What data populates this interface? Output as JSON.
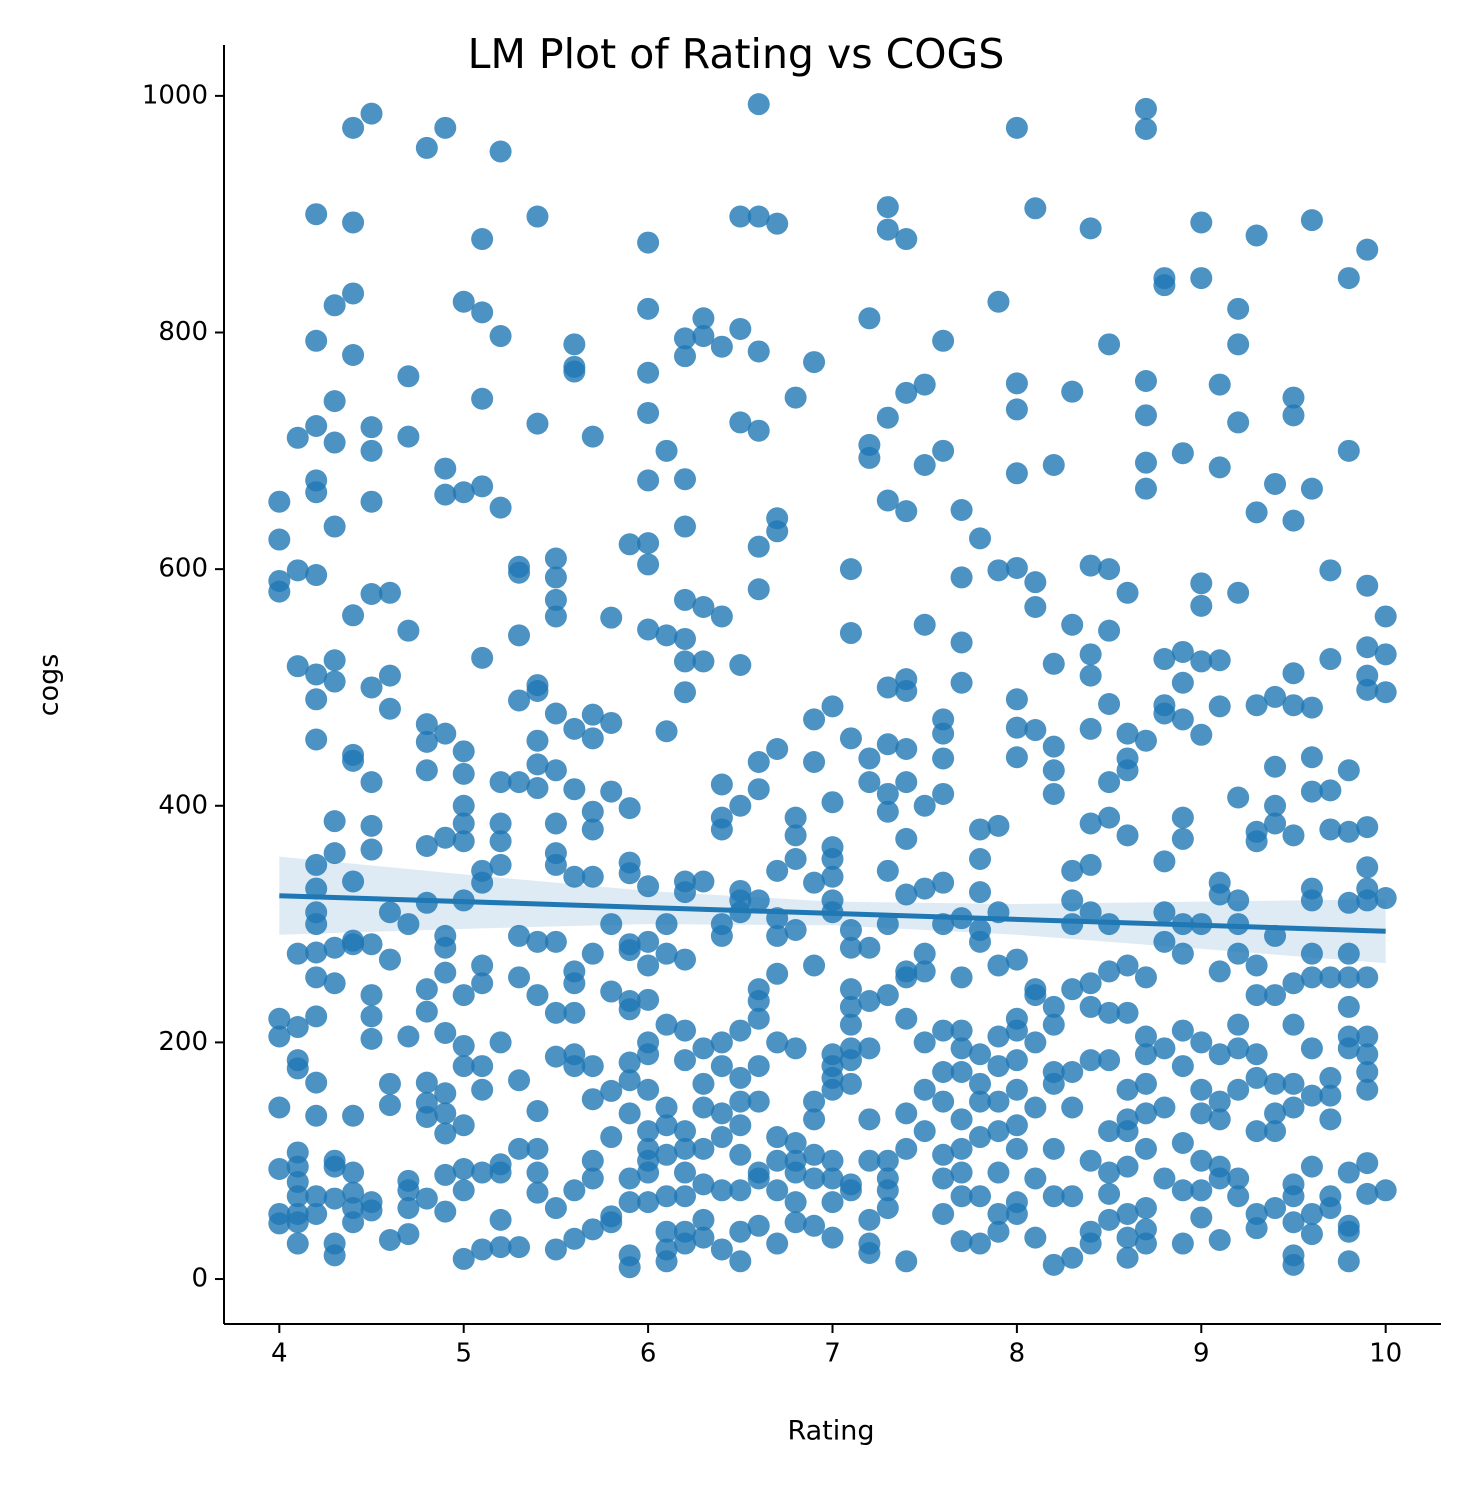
{
  "chart_data": {
    "type": "scatter",
    "title": "LM Plot of Rating vs COGS",
    "x_label": "Rating",
    "y_label": "cogs",
    "color": "#1f77b4",
    "xlim": [
      3.7,
      10.3
    ],
    "ylim": [
      -38,
      1043
    ],
    "xticks": [
      4,
      5,
      6,
      7,
      8,
      9,
      10
    ],
    "yticks": [
      0,
      200,
      400,
      600,
      800,
      1000
    ],
    "x": [
      4,
      4,
      4,
      4,
      4,
      4,
      4,
      4,
      4,
      4,
      4.1,
      4.1,
      4.1,
      4.1,
      4.1,
      4.1,
      4.1,
      4.1,
      4.1,
      4.1,
      4.1,
      4.1,
      4.1,
      4.1,
      4.2,
      4.2,
      4.2,
      4.2,
      4.2,
      4.2,
      4.2,
      4.2,
      4.2,
      4.2,
      4.2,
      4.2,
      4.2,
      4.2,
      4.2,
      4.2,
      4.2,
      4.2,
      4.2,
      4.2,
      4.3,
      4.3,
      4.3,
      4.3,
      4.3,
      4.3,
      4.3,
      4.3,
      4.3,
      4.3,
      4.3,
      4.3,
      4.3,
      4.3,
      4.3,
      4.4,
      4.4,
      4.4,
      4.4,
      4.4,
      4.4,
      4.4,
      4.4,
      4.4,
      4.4,
      4.4,
      4.4,
      4.4,
      4.4,
      4.4,
      4.5,
      4.5,
      4.5,
      4.5,
      4.5,
      4.5,
      4.5,
      4.5,
      4.5,
      4.5,
      4.5,
      4.5,
      4.5,
      4.5,
      4.5,
      4.6,
      4.6,
      4.6,
      4.6,
      4.6,
      4.6,
      4.6,
      4.6,
      4.7,
      4.7,
      4.7,
      4.7,
      4.7,
      4.7,
      4.7,
      4.7,
      4.7,
      4.8,
      4.8,
      4.8,
      4.8,
      4.8,
      4.8,
      4.8,
      4.8,
      4.8,
      4.8,
      4.8,
      4.8,
      4.9,
      4.9,
      4.9,
      4.9,
      4.9,
      4.9,
      4.9,
      4.9,
      4.9,
      4.9,
      4.9,
      4.9,
      4.9,
      4.9,
      5,
      5,
      5,
      5,
      5,
      5,
      5,
      5,
      5,
      5,
      5,
      5,
      5,
      5,
      5,
      5.1,
      5.1,
      5.1,
      5.1,
      5.1,
      5.1,
      5.1,
      5.1,
      5.1,
      5.1,
      5.1,
      5.1,
      5.1,
      5.2,
      5.2,
      5.2,
      5.2,
      5.2,
      5.2,
      5.2,
      5.2,
      5.2,
      5.2,
      5.2,
      5.2,
      5.3,
      5.3,
      5.3,
      5.3,
      5.3,
      5.3,
      5.3,
      5.3,
      5.3,
      5.3,
      5.4,
      5.4,
      5.4,
      5.4,
      5.4,
      5.4,
      5.4,
      5.4,
      5.4,
      5.4,
      5.4,
      5.4,
      5.4,
      5.5,
      5.5,
      5.5,
      5.5,
      5.5,
      5.5,
      5.5,
      5.5,
      5.5,
      5.5,
      5.5,
      5.5,
      5.5,
      5.5,
      5.6,
      5.6,
      5.6,
      5.6,
      5.6,
      5.6,
      5.6,
      5.6,
      5.6,
      5.6,
      5.6,
      5.6,
      5.6,
      5.7,
      5.7,
      5.7,
      5.7,
      5.7,
      5.7,
      5.7,
      5.7,
      5.7,
      5.7,
      5.7,
      5.7,
      5.8,
      5.8,
      5.8,
      5.8,
      5.8,
      5.8,
      5.8,
      5.8,
      5.8,
      5.9,
      5.9,
      5.9,
      5.9,
      5.9,
      5.9,
      5.9,
      5.9,
      5.9,
      5.9,
      5.9,
      5.9,
      5.9,
      5.9,
      5.9,
      6,
      6,
      6,
      6,
      6,
      6,
      6,
      6,
      6,
      6,
      6,
      6,
      6,
      6,
      6,
      6,
      6,
      6,
      6,
      6,
      6.1,
      6.1,
      6.1,
      6.1,
      6.1,
      6.1,
      6.1,
      6.1,
      6.1,
      6.1,
      6.1,
      6.1,
      6.1,
      6.2,
      6.2,
      6.2,
      6.2,
      6.2,
      6.2,
      6.2,
      6.2,
      6.2,
      6.2,
      6.2,
      6.2,
      6.2,
      6.2,
      6.2,
      6.2,
      6.2,
      6.2,
      6.2,
      6.3,
      6.3,
      6.3,
      6.3,
      6.3,
      6.3,
      6.3,
      6.3,
      6.3,
      6.3,
      6.3,
      6.3,
      6.4,
      6.4,
      6.4,
      6.4,
      6.4,
      6.4,
      6.4,
      6.4,
      6.4,
      6.4,
      6.4,
      6.4,
      6.4,
      6.5,
      6.5,
      6.5,
      6.5,
      6.5,
      6.5,
      6.5,
      6.5,
      6.5,
      6.5,
      6.5,
      6.5,
      6.5,
      6.5,
      6.5,
      6.5,
      6.6,
      6.6,
      6.6,
      6.6,
      6.6,
      6.6,
      6.6,
      6.6,
      6.6,
      6.6,
      6.6,
      6.6,
      6.6,
      6.6,
      6.6,
      6.6,
      6.6,
      6.7,
      6.7,
      6.7,
      6.7,
      6.7,
      6.7,
      6.7,
      6.7,
      6.7,
      6.7,
      6.7,
      6.7,
      6.7,
      6.8,
      6.8,
      6.8,
      6.8,
      6.8,
      6.8,
      6.8,
      6.8,
      6.8,
      6.8,
      6.8,
      6.9,
      6.9,
      6.9,
      6.9,
      6.9,
      6.9,
      6.9,
      6.9,
      6.9,
      6.9,
      7,
      7,
      7,
      7,
      7,
      7,
      7,
      7,
      7,
      7,
      7,
      7,
      7,
      7,
      7,
      7.1,
      7.1,
      7.1,
      7.1,
      7.1,
      7.1,
      7.1,
      7.1,
      7.1,
      7.1,
      7.1,
      7.1,
      7.1,
      7.2,
      7.2,
      7.2,
      7.2,
      7.2,
      7.2,
      7.2,
      7.2,
      7.2,
      7.2,
      7.2,
      7.2,
      7.2,
      7.3,
      7.3,
      7.3,
      7.3,
      7.3,
      7.3,
      7.3,
      7.3,
      7.3,
      7.3,
      7.3,
      7.3,
      7.3,
      7.3,
      7.3,
      7.4,
      7.4,
      7.4,
      7.4,
      7.4,
      7.4,
      7.4,
      7.4,
      7.4,
      7.4,
      7.4,
      7.4,
      7.4,
      7.4,
      7.4,
      7.5,
      7.5,
      7.5,
      7.5,
      7.5,
      7.5,
      7.5,
      7.5,
      7.5,
      7.5,
      7.6,
      7.6,
      7.6,
      7.6,
      7.6,
      7.6,
      7.6,
      7.6,
      7.6,
      7.6,
      7.6,
      7.6,
      7.6,
      7.6,
      7.7,
      7.7,
      7.7,
      7.7,
      7.7,
      7.7,
      7.7,
      7.7,
      7.7,
      7.7,
      7.7,
      7.7,
      7.7,
      7.7,
      7.8,
      7.8,
      7.8,
      7.8,
      7.8,
      7.8,
      7.8,
      7.8,
      7.8,
      7.8,
      7.8,
      7.8,
      7.9,
      7.9,
      7.9,
      7.9,
      7.9,
      7.9,
      7.9,
      7.9,
      7.9,
      7.9,
      7.9,
      7.9,
      8,
      8,
      8,
      8,
      8,
      8,
      8,
      8,
      8,
      8,
      8,
      8,
      8,
      8,
      8,
      8,
      8,
      8.1,
      8.1,
      8.1,
      8.1,
      8.1,
      8.1,
      8.1,
      8.1,
      8.1,
      8.1,
      8.2,
      8.2,
      8.2,
      8.2,
      8.2,
      8.2,
      8.2,
      8.2,
      8.2,
      8.2,
      8.2,
      8.2,
      8.3,
      8.3,
      8.3,
      8.3,
      8.3,
      8.3,
      8.3,
      8.3,
      8.3,
      8.3,
      8.4,
      8.4,
      8.4,
      8.4,
      8.4,
      8.4,
      8.4,
      8.4,
      8.4,
      8.4,
      8.4,
      8.4,
      8.4,
      8.4,
      8.5,
      8.5,
      8.5,
      8.5,
      8.5,
      8.5,
      8.5,
      8.5,
      8.5,
      8.5,
      8.5,
      8.5,
      8.5,
      8.5,
      8.6,
      8.6,
      8.6,
      8.6,
      8.6,
      8.6,
      8.6,
      8.6,
      8.6,
      8.6,
      8.6,
      8.6,
      8.6,
      8.6,
      8.7,
      8.7,
      8.7,
      8.7,
      8.7,
      8.7,
      8.7,
      8.7,
      8.7,
      8.7,
      8.7,
      8.7,
      8.7,
      8.7,
      8.7,
      8.7,
      8.8,
      8.8,
      8.8,
      8.8,
      8.8,
      8.8,
      8.8,
      8.8,
      8.8,
      8.8,
      8.8,
      8.9,
      8.9,
      8.9,
      8.9,
      8.9,
      8.9,
      8.9,
      8.9,
      8.9,
      8.9,
      8.9,
      8.9,
      8.9,
      9,
      9,
      9,
      9,
      9,
      9,
      9,
      9,
      9,
      9,
      9,
      9,
      9,
      9.1,
      9.1,
      9.1,
      9.1,
      9.1,
      9.1,
      9.1,
      9.1,
      9.1,
      9.1,
      9.1,
      9.1,
      9.1,
      9.2,
      9.2,
      9.2,
      9.2,
      9.2,
      9.2,
      9.2,
      9.2,
      9.2,
      9.2,
      9.2,
      9.2,
      9.2,
      9.3,
      9.3,
      9.3,
      9.3,
      9.3,
      9.3,
      9.3,
      9.3,
      9.3,
      9.3,
      9.3,
      9.3,
      9.4,
      9.4,
      9.4,
      9.4,
      9.4,
      9.4,
      9.4,
      9.4,
      9.4,
      9.4,
      9.4,
      9.5,
      9.5,
      9.5,
      9.5,
      9.5,
      9.5,
      9.5,
      9.5,
      9.5,
      9.5,
      9.5,
      9.5,
      9.5,
      9.5,
      9.5,
      9.6,
      9.6,
      9.6,
      9.6,
      9.6,
      9.6,
      9.6,
      9.6,
      9.6,
      9.6,
      9.6,
      9.6,
      9.6,
      9.6,
      9.7,
      9.7,
      9.7,
      9.7,
      9.7,
      9.7,
      9.7,
      9.7,
      9.7,
      9.7,
      9.8,
      9.8,
      9.8,
      9.8,
      9.8,
      9.8,
      9.8,
      9.8,
      9.8,
      9.8,
      9.8,
      9.8,
      9.8,
      9.8,
      9.9,
      9.9,
      9.9,
      9.9,
      9.9,
      9.9,
      9.9,
      9.9,
      9.9,
      9.9,
      9.9,
      9.9,
      9.9,
      9.9,
      9.9,
      9.9,
      10,
      10,
      10,
      10,
      10
    ],
    "values": [
      657,
      625,
      590,
      581,
      220,
      205,
      145,
      93,
      55,
      47,
      711,
      599,
      518,
      275,
      213,
      185,
      178,
      107,
      95,
      82,
      70,
      55,
      48,
      30,
      900,
      793,
      721,
      675,
      665,
      595,
      511,
      490,
      456,
      350,
      330,
      310,
      300,
      276,
      255,
      222,
      166,
      138,
      70,
      55,
      823,
      742,
      707,
      636,
      523,
      505,
      387,
      360,
      280,
      250,
      100,
      95,
      68,
      30,
      20,
      973,
      893,
      833,
      781,
      561,
      443,
      438,
      336,
      286,
      283,
      138,
      90,
      73,
      60,
      48,
      985,
      720,
      700,
      657,
      579,
      500,
      420,
      383,
      363,
      283,
      240,
      222,
      203,
      65,
      58,
      580,
      510,
      482,
      310,
      270,
      165,
      147,
      33,
      763,
      712,
      548,
      300,
      205,
      83,
      75,
      60,
      38,
      956,
      469,
      454,
      430,
      366,
      318,
      245,
      226,
      166,
      149,
      137,
      68,
      973,
      685,
      663,
      461,
      373,
      290,
      280,
      259,
      208,
      157,
      140,
      123,
      88,
      57,
      826,
      665,
      446,
      427,
      400,
      385,
      370,
      320,
      240,
      197,
      180,
      130,
      93,
      75,
      17,
      879,
      817,
      744,
      670,
      525,
      345,
      335,
      265,
      250,
      180,
      160,
      90,
      25,
      953,
      797,
      652,
      420,
      385,
      370,
      350,
      200,
      97,
      90,
      50,
      27,
      602,
      597,
      544,
      489,
      420,
      290,
      255,
      168,
      110,
      27,
      898,
      723,
      502,
      497,
      455,
      435,
      415,
      285,
      240,
      142,
      110,
      90,
      73,
      609,
      593,
      574,
      560,
      478,
      430,
      385,
      360,
      350,
      285,
      225,
      188,
      60,
      25,
      790,
      771,
      767,
      465,
      414,
      340,
      260,
      250,
      225,
      190,
      180,
      75,
      34,
      712,
      477,
      457,
      395,
      380,
      340,
      275,
      180,
      152,
      100,
      85,
      42,
      559,
      470,
      412,
      300,
      243,
      159,
      120,
      53,
      48,
      621,
      398,
      352,
      343,
      283,
      278,
      235,
      228,
      183,
      168,
      140,
      85,
      65,
      20,
      10,
      876,
      820,
      766,
      732,
      675,
      622,
      604,
      549,
      332,
      285,
      265,
      236,
      200,
      190,
      160,
      125,
      110,
      100,
      90,
      65,
      700,
      544,
      463,
      300,
      275,
      215,
      145,
      130,
      105,
      70,
      40,
      25,
      15,
      795,
      780,
      676,
      636,
      574,
      541,
      522,
      496,
      336,
      327,
      270,
      210,
      185,
      125,
      110,
      90,
      70,
      40,
      30,
      812,
      797,
      568,
      522,
      336,
      195,
      165,
      145,
      110,
      80,
      50,
      35,
      788,
      560,
      418,
      390,
      380,
      300,
      290,
      200,
      180,
      140,
      120,
      75,
      25,
      898,
      803,
      724,
      519,
      400,
      328,
      320,
      310,
      210,
      170,
      150,
      130,
      105,
      75,
      40,
      15,
      993,
      898,
      784,
      717,
      619,
      583,
      437,
      414,
      320,
      245,
      235,
      220,
      180,
      150,
      90,
      85,
      45,
      892,
      643,
      632,
      448,
      345,
      305,
      290,
      258,
      200,
      120,
      100,
      75,
      30,
      745,
      390,
      375,
      355,
      295,
      195,
      115,
      100,
      90,
      65,
      48,
      775,
      473,
      437,
      335,
      265,
      150,
      135,
      105,
      85,
      45,
      484,
      403,
      365,
      355,
      340,
      320,
      310,
      190,
      180,
      170,
      160,
      100,
      85,
      65,
      35,
      600,
      546,
      457,
      295,
      280,
      245,
      230,
      215,
      195,
      185,
      165,
      80,
      75,
      812,
      705,
      694,
      440,
      420,
      280,
      235,
      195,
      135,
      100,
      50,
      30,
      22,
      906,
      887,
      728,
      658,
      500,
      452,
      410,
      395,
      345,
      300,
      240,
      100,
      85,
      75,
      60,
      879,
      749,
      649,
      507,
      497,
      448,
      420,
      372,
      325,
      260,
      255,
      220,
      140,
      110,
      15,
      756,
      688,
      553,
      400,
      330,
      275,
      260,
      200,
      160,
      125,
      793,
      700,
      473,
      461,
      440,
      410,
      335,
      300,
      210,
      175,
      150,
      105,
      85,
      55,
      650,
      593,
      538,
      504,
      305,
      255,
      210,
      195,
      175,
      135,
      110,
      90,
      70,
      32,
      626,
      380,
      355,
      327,
      295,
      285,
      190,
      165,
      150,
      120,
      70,
      30,
      826,
      599,
      383,
      310,
      265,
      205,
      180,
      150,
      125,
      90,
      55,
      40,
      973,
      757,
      735,
      681,
      601,
      490,
      466,
      441,
      270,
      220,
      210,
      185,
      160,
      130,
      110,
      65,
      55,
      905,
      589,
      568,
      464,
      245,
      240,
      200,
      145,
      85,
      35,
      688,
      520,
      450,
      430,
      410,
      230,
      215,
      175,
      165,
      110,
      70,
      12,
      750,
      553,
      345,
      320,
      300,
      245,
      175,
      145,
      70,
      18,
      888,
      603,
      528,
      510,
      465,
      385,
      350,
      310,
      250,
      230,
      185,
      100,
      40,
      30,
      790,
      600,
      548,
      486,
      420,
      390,
      300,
      260,
      225,
      185,
      125,
      90,
      72,
      50,
      580,
      461,
      440,
      430,
      375,
      265,
      225,
      160,
      135,
      125,
      95,
      55,
      35,
      18,
      989,
      972,
      759,
      730,
      690,
      668,
      455,
      255,
      205,
      190,
      165,
      140,
      110,
      60,
      42,
      30,
      846,
      840,
      524,
      485,
      478,
      353,
      310,
      285,
      195,
      145,
      85,
      698,
      530,
      504,
      473,
      390,
      372,
      300,
      275,
      210,
      180,
      115,
      75,
      30,
      893,
      846,
      588,
      569,
      522,
      460,
      300,
      200,
      160,
      140,
      100,
      75,
      52,
      756,
      686,
      523,
      484,
      335,
      325,
      260,
      190,
      150,
      135,
      95,
      85,
      33,
      820,
      790,
      724,
      580,
      407,
      320,
      300,
      275,
      215,
      195,
      160,
      85,
      70,
      882,
      648,
      485,
      378,
      370,
      265,
      240,
      190,
      170,
      125,
      55,
      43,
      672,
      492,
      433,
      400,
      385,
      290,
      240,
      165,
      140,
      125,
      60,
      745,
      730,
      641,
      512,
      485,
      375,
      250,
      215,
      165,
      145,
      80,
      70,
      48,
      20,
      12,
      895,
      668,
      483,
      441,
      412,
      330,
      320,
      275,
      255,
      195,
      155,
      95,
      55,
      38,
      599,
      524,
      413,
      380,
      255,
      170,
      155,
      135,
      70,
      60,
      846,
      700,
      430,
      378,
      318,
      275,
      255,
      230,
      205,
      195,
      90,
      45,
      40,
      15,
      870,
      586,
      534,
      510,
      498,
      382,
      348,
      330,
      320,
      255,
      205,
      190,
      175,
      160,
      98,
      72,
      560,
      528,
      496,
      322,
      75
    ],
    "regression": {
      "x": [
        4,
        10
      ],
      "y": [
        324,
        294
      ]
    },
    "ci": {
      "x": [
        4,
        5,
        6,
        7,
        8,
        9,
        10
      ],
      "upper": [
        357,
        342,
        328,
        319,
        317,
        319,
        321
      ],
      "lower": [
        291,
        296,
        300,
        299,
        291,
        279,
        267
      ]
    }
  }
}
